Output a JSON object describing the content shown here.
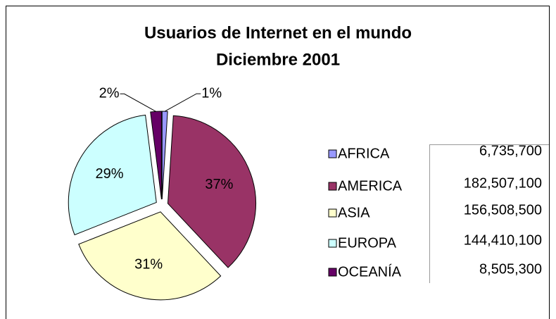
{
  "chart_data": {
    "type": "pie",
    "title": "Usuarios de Internet en el mundo",
    "subtitle": "Diciembre 2001",
    "categories": [
      "AFRICA",
      "AMERICA",
      "ASIA",
      "EUROPA",
      "OCEANÍA"
    ],
    "values": [
      1,
      37,
      31,
      29,
      2
    ],
    "value_labels": [
      "1%",
      "37%",
      "31%",
      "29%",
      "2%"
    ],
    "colors": [
      "#9999ff",
      "#993366",
      "#ffffcc",
      "#ccffff",
      "#660066"
    ],
    "value_table": [
      "6,735,700",
      "182,507,100",
      "156,508,500",
      "144,410,100",
      "8,505,300"
    ],
    "legend": "right"
  }
}
